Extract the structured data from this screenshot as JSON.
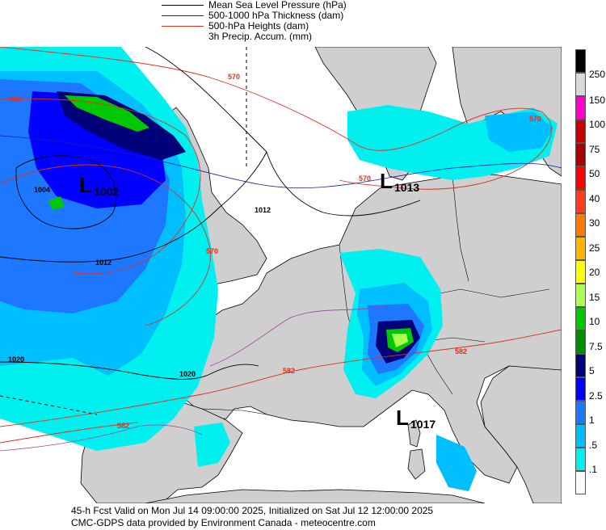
{
  "legend": [
    {
      "label": "Mean Sea Level Pressure (hPa)",
      "color": "#000000"
    },
    {
      "label": "500-1000 hPa Thickness (dam)",
      "color": "#1a1aa6"
    },
    {
      "label": "500-hPa Heights (dam)",
      "color": "#e0301e"
    },
    {
      "label": "3h Precip. Accum. (mm)",
      "color": ""
    }
  ],
  "colorscale": [
    {
      "label": "250",
      "color": "#000000"
    },
    {
      "label": "",
      "color": "#d9d9d9"
    },
    {
      "label": "150",
      "color": "#ff00c8"
    },
    {
      "label": "100",
      "color": "#c80000"
    },
    {
      "label": "75",
      "color": "#aa0000"
    },
    {
      "label": "50",
      "color": "#ff0000"
    },
    {
      "label": "40",
      "color": "#ff3a1e"
    },
    {
      "label": "30",
      "color": "#ff7800"
    },
    {
      "label": "25",
      "color": "#ffb400"
    },
    {
      "label": "20",
      "color": "#ffff00"
    },
    {
      "label": "15",
      "color": "#aaff50"
    },
    {
      "label": "10",
      "color": "#00c800"
    },
    {
      "label": "7.5",
      "color": "#008c00"
    },
    {
      "label": "5",
      "color": "#000078"
    },
    {
      "label": "2.5",
      "color": "#0000ff"
    },
    {
      "label": "1",
      "color": "#1e78ff"
    },
    {
      "label": ".5",
      "color": "#00bfff"
    },
    {
      "label": ".1",
      "color": "#00f0f0"
    },
    {
      "label": "",
      "color": "#ffffff"
    }
  ],
  "map": {
    "lows": [
      {
        "letter": "L",
        "value": "1002"
      },
      {
        "letter": "L",
        "value": "1013"
      },
      {
        "letter": "L",
        "value": "1017"
      }
    ],
    "isobar_labels": [
      "1004",
      "1012",
      "1012",
      "1020",
      "1020"
    ],
    "height_labels": [
      "558",
      "570",
      "570",
      "570",
      "570",
      "582",
      "582",
      "582"
    ],
    "colors": {
      "sea": "#ffffff",
      "land": "#cfcfcf",
      "coast": "#000000",
      "isobar": "#000000",
      "height": "#e0301e",
      "thickness": "#1a1aa6",
      "boundary": "#a040a0"
    }
  },
  "footer": {
    "line1": "45-h Fcst Valid on Mon Jul 14 09:00:00 2025, Initialized on Sat Jul 12 12:00:00 2025",
    "line2": "CMC-GDPS data provided by Environment Canada - meteocentre.com"
  }
}
